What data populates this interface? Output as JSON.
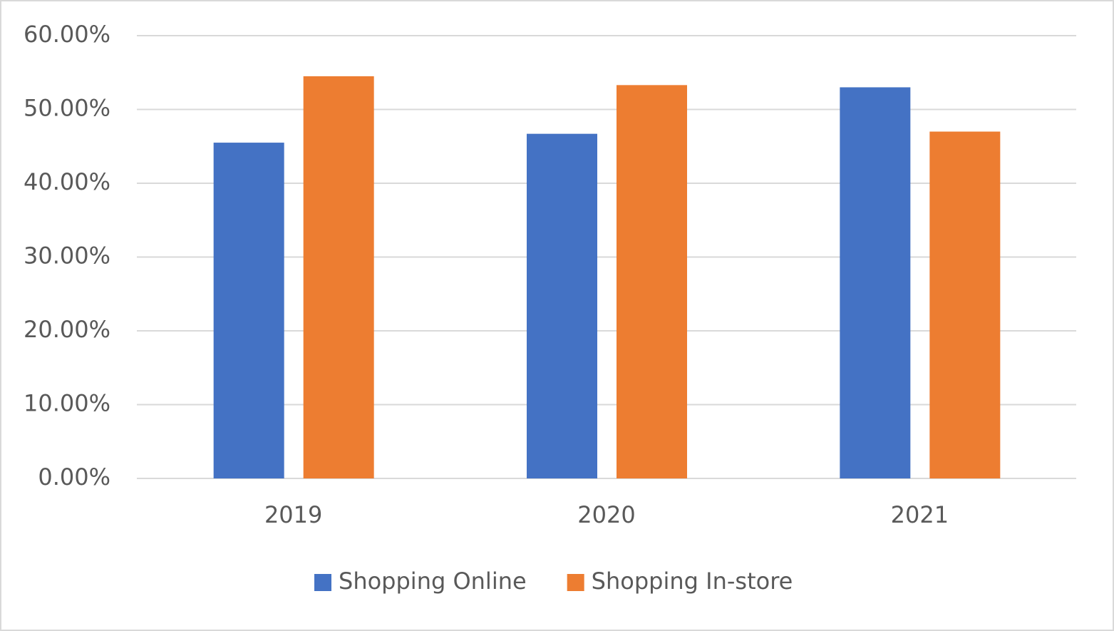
{
  "chart_data": {
    "type": "bar",
    "categories": [
      "2019",
      "2020",
      "2021"
    ],
    "series": [
      {
        "name": "Shopping Online",
        "color": "#4472c4",
        "values": [
          45.5,
          46.7,
          53
        ]
      },
      {
        "name": "Shopping In-store",
        "color": "#ed7d31",
        "values": [
          54.5,
          53.3,
          47
        ]
      }
    ],
    "ylim": [
      0,
      60
    ],
    "yticks": [
      {
        "value": 0,
        "label": "0.00%"
      },
      {
        "value": 10,
        "label": "10.00%"
      },
      {
        "value": 20,
        "label": "20.00%"
      },
      {
        "value": 30,
        "label": "30.00%"
      },
      {
        "value": 40,
        "label": "40.00%"
      },
      {
        "value": 50,
        "label": "50.00%"
      },
      {
        "value": 60,
        "label": "60.00%"
      }
    ],
    "grid": true,
    "legend": "bottom"
  }
}
